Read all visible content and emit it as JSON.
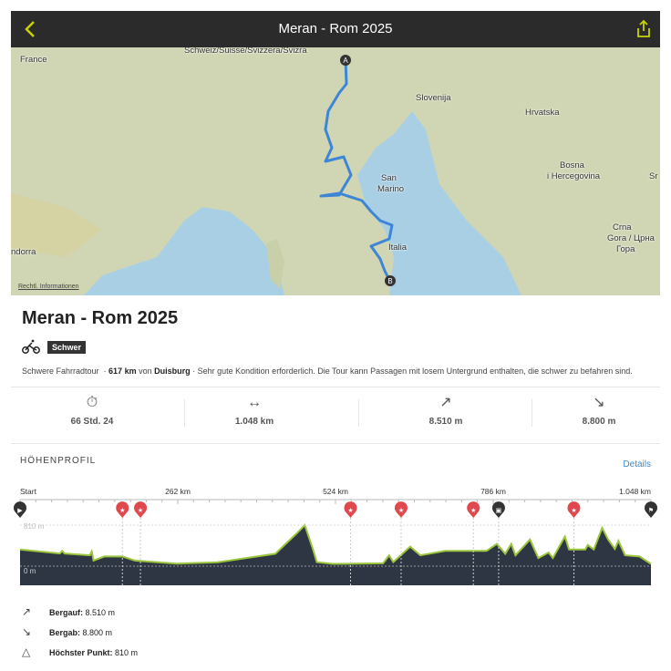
{
  "header": {
    "title": "Meran - Rom 2025",
    "back_icon": "chevron-left-icon",
    "share_icon": "share-icon",
    "accent": "#c8d400"
  },
  "map": {
    "labels": [
      "France",
      "Schweiz/Suisse/Svizzera/Svizra",
      "Slovenija",
      "Hrvatska",
      "Bosna",
      "i Hercegovina",
      "San",
      "Marino",
      "Italia",
      "Crna",
      "Gora / Црна",
      "Гора",
      "ndorra",
      "Sr"
    ],
    "start_marker": "A",
    "end_marker": "B",
    "legal": "Rechtl. Informationen",
    "route_color": "#3d86d6"
  },
  "tour": {
    "title": "Meran - Rom 2025",
    "sport_icon": "bicycle-icon",
    "difficulty": "Schwer",
    "desc_type": "Schwere Fahrradtour",
    "desc_distance": "617 km",
    "desc_from": "von",
    "desc_place": "Duisburg",
    "desc_text": "Sehr gute Kondition erforderlich. Die Tour kann Passagen mit losem Untergrund enthalten, die schwer zu befahren sind."
  },
  "stats": [
    {
      "icon": "stopwatch-icon",
      "value": "66 Std. 24"
    },
    {
      "icon": "distance-arrows-icon",
      "value": "1.048 km"
    },
    {
      "icon": "arrow-up-right-icon",
      "value": "8.510 m"
    },
    {
      "icon": "arrow-down-right-icon",
      "value": "8.800 m"
    }
  ],
  "profile": {
    "heading": "HÖHENPROFIL",
    "details_link": "Details",
    "x_ticks": [
      "Start",
      "262 km",
      "524 km",
      "786 km",
      "1.048 km"
    ],
    "y_labels": [
      "810 m",
      "0 m"
    ],
    "colors": {
      "fill": "#2e3644",
      "line": "#9bc53d",
      "poi": "#e0484e",
      "marker": "#333333"
    },
    "markers": [
      {
        "km": 0,
        "type": "start"
      },
      {
        "km": 170,
        "type": "highlight"
      },
      {
        "km": 200,
        "type": "highlight"
      },
      {
        "km": 549,
        "type": "highlight"
      },
      {
        "km": 633,
        "type": "highlight"
      },
      {
        "km": 753,
        "type": "highlight"
      },
      {
        "km": 795,
        "type": "accommodation"
      },
      {
        "km": 920,
        "type": "highlight"
      },
      {
        "km": 1048,
        "type": "finish"
      }
    ],
    "elevation": [
      [
        0,
        330
      ],
      [
        66,
        250
      ],
      [
        70,
        300
      ],
      [
        74,
        250
      ],
      [
        116,
        215
      ],
      [
        119,
        290
      ],
      [
        122,
        110
      ],
      [
        140,
        190
      ],
      [
        170,
        190
      ],
      [
        191,
        110
      ],
      [
        260,
        50
      ],
      [
        328,
        75
      ],
      [
        424,
        245
      ],
      [
        459,
        640
      ],
      [
        473,
        810
      ],
      [
        486,
        355
      ],
      [
        493,
        80
      ],
      [
        520,
        45
      ],
      [
        603,
        55
      ],
      [
        613,
        215
      ],
      [
        620,
        80
      ],
      [
        648,
        385
      ],
      [
        665,
        215
      ],
      [
        706,
        300
      ],
      [
        775,
        300
      ],
      [
        792,
        440
      ],
      [
        806,
        245
      ],
      [
        816,
        440
      ],
      [
        823,
        215
      ],
      [
        847,
        525
      ],
      [
        861,
        160
      ],
      [
        878,
        270
      ],
      [
        885,
        160
      ],
      [
        905,
        585
      ],
      [
        912,
        330
      ],
      [
        939,
        330
      ],
      [
        943,
        415
      ],
      [
        953,
        330
      ],
      [
        967,
        755
      ],
      [
        977,
        525
      ],
      [
        988,
        340
      ],
      [
        994,
        500
      ],
      [
        1005,
        215
      ],
      [
        1029,
        190
      ],
      [
        1048,
        45
      ]
    ]
  },
  "summary": [
    {
      "icon": "arrow-up-right-icon",
      "label": "Bergauf:",
      "value": "8.510 m"
    },
    {
      "icon": "arrow-down-right-icon",
      "label": "Bergab:",
      "value": "8.800 m"
    },
    {
      "icon": "triangle-icon",
      "label": "Höchster Punkt:",
      "value": "810 m"
    }
  ]
}
